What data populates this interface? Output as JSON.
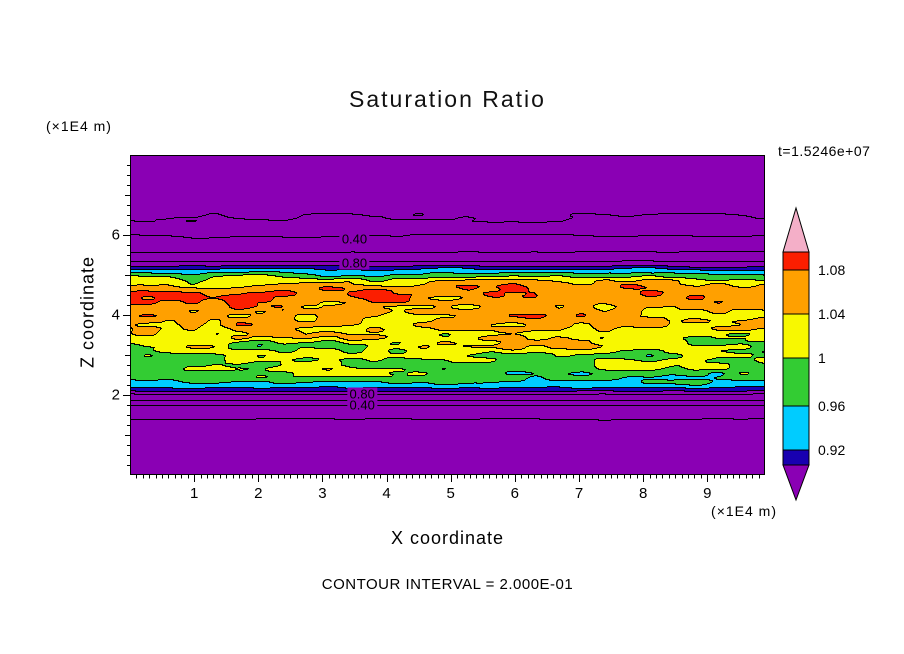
{
  "header": {
    "title": "Saturation Ratio",
    "time_label": "t=1.5246e+07"
  },
  "footer": {
    "contour_interval_label": "CONTOUR INTERVAL = 2.000E-01"
  },
  "chart_data": {
    "type": "heatmap",
    "title": "Saturation Ratio",
    "xlabel": "X coordinate",
    "ylabel": "Z coordinate",
    "x_units": "(×1E4 m)",
    "z_units": "(×1E4 m)",
    "time": "t=1.5246e+07",
    "x_range": [
      0,
      9.9
    ],
    "z_range": [
      0,
      8
    ],
    "x_ticks": [
      1,
      2,
      3,
      4,
      5,
      6,
      7,
      8,
      9
    ],
    "z_ticks": [
      2,
      4,
      6
    ],
    "x_minor_step": 0.1,
    "z_minor_step": 0.25,
    "contour_interval": 0.2,
    "line_contour_levels": [
      0.2,
      0.4,
      0.6,
      0.8,
      1.0,
      1.2
    ],
    "fill_levels": [
      0.88,
      0.92,
      0.96,
      1.0,
      1.04,
      1.08,
      1.12
    ],
    "fill_colors": [
      "#8A00B4",
      "#1800B0",
      "#00CCFF",
      "#33CC33",
      "#F8F800",
      "#FFA000",
      "#FB1E00",
      "#F4AFC8"
    ],
    "contour_labels": [
      {
        "text": "0.40",
        "x": 3.5,
        "z": 5.9
      },
      {
        "text": "0.80",
        "x": 3.5,
        "z": 5.3
      },
      {
        "text": "0.80",
        "x": 3.62,
        "z": 2.03
      },
      {
        "text": "0.40",
        "x": 3.62,
        "z": 1.76
      }
    ],
    "colorbar": {
      "labels": [
        {
          "text": "1.08",
          "value": 1.08
        },
        {
          "text": "1.04",
          "value": 1.04
        },
        {
          "text": "1",
          "value": 1.0
        },
        {
          "text": "0.96",
          "value": 0.96
        },
        {
          "text": "0.92",
          "value": 0.92
        }
      ],
      "segment_colors_top_to_bottom": [
        "#F4AFC8",
        "#FB1E00",
        "#FFA000",
        "#F8F800",
        "#33CC33",
        "#00CCFF",
        "#1800B0",
        "#8A00B4"
      ]
    },
    "field_model": {
      "profile": [
        [
          0,
          0.185
        ],
        [
          1.3,
          0.185
        ],
        [
          1.48,
          0.21
        ],
        [
          1.6,
          0.3
        ],
        [
          1.75,
          0.4
        ],
        [
          1.95,
          0.7
        ],
        [
          2.1,
          0.88
        ],
        [
          2.25,
          0.95
        ],
        [
          2.5,
          0.99
        ],
        [
          3.0,
          1.005
        ],
        [
          3.5,
          1.025
        ],
        [
          4.0,
          1.055
        ],
        [
          4.35,
          1.075
        ],
        [
          4.7,
          1.065
        ],
        [
          4.9,
          1.02
        ],
        [
          5.05,
          0.96
        ],
        [
          5.2,
          0.9
        ],
        [
          5.3,
          0.84
        ],
        [
          5.45,
          0.72
        ],
        [
          5.7,
          0.5
        ],
        [
          6.05,
          0.38
        ],
        [
          6.35,
          0.21
        ],
        [
          6.6,
          0.185
        ],
        [
          8,
          0.185
        ]
      ],
      "noise_amplitude": [
        [
          0,
          0.006
        ],
        [
          1.9,
          0.006
        ],
        [
          2.2,
          0.025
        ],
        [
          2.6,
          0.055
        ],
        [
          3.2,
          0.06
        ],
        [
          4.6,
          0.06
        ],
        [
          4.95,
          0.045
        ],
        [
          5.1,
          0.025
        ],
        [
          5.35,
          0.018
        ],
        [
          5.6,
          0.03
        ],
        [
          6.4,
          0.03
        ],
        [
          6.8,
          0.008
        ],
        [
          8,
          0.006
        ]
      ],
      "noise_scales": {
        "x1": 1.0,
        "z1": 4.0,
        "x2": 2.8,
        "z2": 9.0,
        "w1": 0.6,
        "w2": 0.4
      }
    }
  }
}
